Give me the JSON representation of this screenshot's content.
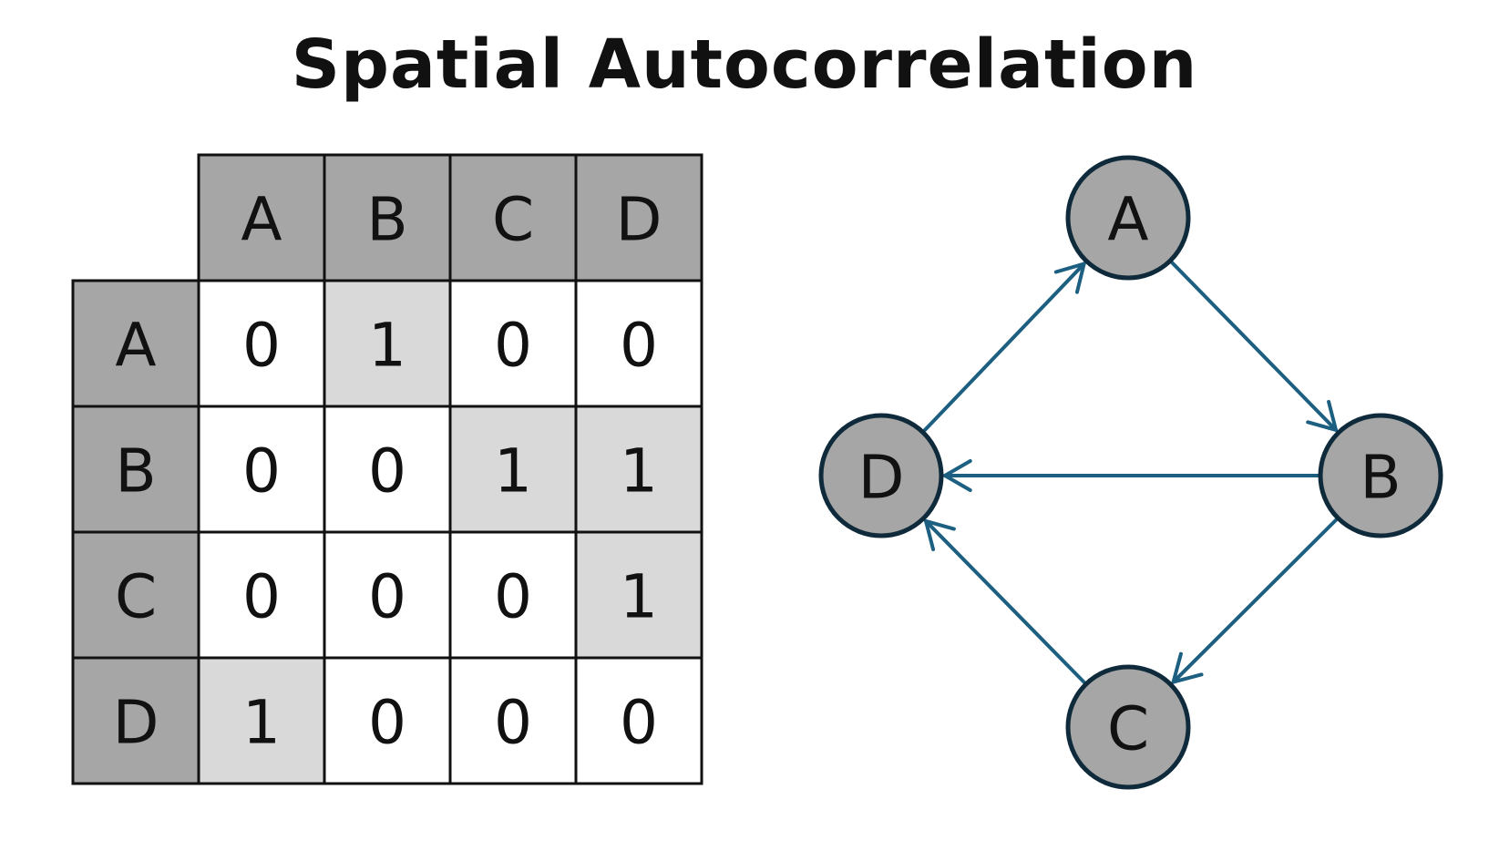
{
  "title": "Spatial Autocorrelation",
  "matrix": {
    "labels": [
      "A",
      "B",
      "C",
      "D"
    ],
    "values": [
      [
        0,
        1,
        0,
        0
      ],
      [
        0,
        0,
        1,
        1
      ],
      [
        0,
        0,
        0,
        1
      ],
      [
        1,
        0,
        0,
        0
      ]
    ]
  },
  "graph": {
    "nodes": [
      {
        "id": "A",
        "label": "A"
      },
      {
        "id": "B",
        "label": "B"
      },
      {
        "id": "C",
        "label": "C"
      },
      {
        "id": "D",
        "label": "D"
      }
    ],
    "edges": [
      {
        "from": "A",
        "to": "B"
      },
      {
        "from": "B",
        "to": "C"
      },
      {
        "from": "B",
        "to": "D"
      },
      {
        "from": "C",
        "to": "D"
      },
      {
        "from": "D",
        "to": "A"
      }
    ]
  },
  "colors": {
    "header_fill": "#a6a6a6",
    "highlight_fill": "#d9d9d9",
    "cell_fill": "#ffffff",
    "grid_stroke": "#111111",
    "node_fill": "#a6a6a6",
    "node_stroke": "#0f2a3a",
    "edge_color": "#1c5f80"
  }
}
